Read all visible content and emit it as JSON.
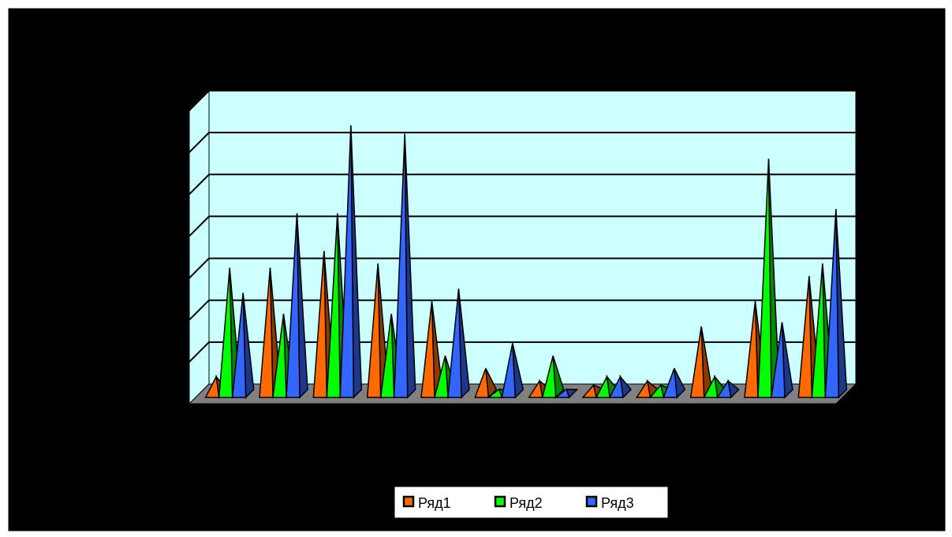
{
  "chart_data": {
    "type": "bar",
    "style": "3d-pyramid",
    "categories": [
      "",
      "",
      "",
      "",
      "",
      "",
      "",
      "",
      "",
      "",
      "",
      ""
    ],
    "series": [
      {
        "name": "Ряд1",
        "color": "#ff6a00",
        "values": [
          0.4,
          3.0,
          3.4,
          3.1,
          2.2,
          0.6,
          0.3,
          0.2,
          0.3,
          1.6,
          2.2,
          2.8
        ]
      },
      {
        "name": "Ряд2",
        "color": "#00ff00",
        "values": [
          3.0,
          1.9,
          4.3,
          1.9,
          0.9,
          0.1,
          0.9,
          0.4,
          0.2,
          0.4,
          5.6,
          3.1
        ]
      },
      {
        "name": "Ряд3",
        "color": "#3366ff",
        "values": [
          2.4,
          4.3,
          6.4,
          6.2,
          2.5,
          1.2,
          0.1,
          0.4,
          0.6,
          0.3,
          1.7,
          4.4
        ]
      }
    ],
    "ylim": [
      0,
      7
    ],
    "grid": true,
    "plot_background": "#ccffff",
    "floor_color": "#808080",
    "chart_background": "#000000",
    "legend_position": "bottom"
  }
}
